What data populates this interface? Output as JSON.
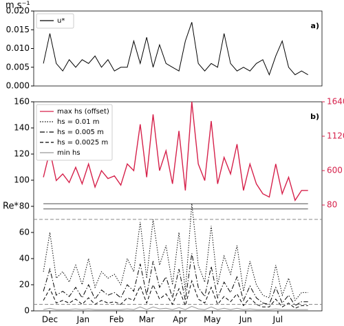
{
  "chart_data": [
    {
      "type": "line",
      "unit_label": "m s⁻¹",
      "panel_label": "a)",
      "x": [
        -6,
        0,
        6,
        12,
        18,
        24,
        30,
        36,
        42,
        48,
        54,
        60,
        66,
        72,
        78,
        84,
        90,
        96,
        102,
        108,
        114,
        120,
        126,
        132,
        138,
        144,
        150,
        156,
        162,
        168,
        174,
        180,
        186,
        192,
        198,
        204,
        210,
        216,
        222,
        228,
        234,
        240
      ],
      "xlim": [
        -15,
        253
      ],
      "series": [
        {
          "name": "u*",
          "color": "#000000",
          "linestyle": "solid",
          "values": [
            0.006,
            0.014,
            0.006,
            0.004,
            0.007,
            0.005,
            0.007,
            0.006,
            0.008,
            0.005,
            0.007,
            0.004,
            0.005,
            0.005,
            0.012,
            0.006,
            0.013,
            0.005,
            0.011,
            0.006,
            0.005,
            0.004,
            0.012,
            0.017,
            0.006,
            0.004,
            0.006,
            0.005,
            0.014,
            0.006,
            0.004,
            0.005,
            0.004,
            0.006,
            0.007,
            0.003,
            0.008,
            0.012,
            0.005,
            0.003,
            0.004,
            0.003
          ]
        }
      ],
      "ylim": [
        0,
        0.02
      ],
      "yticks": [
        {
          "value": 0,
          "label": "0.000"
        },
        {
          "value": 0.005,
          "label": "0.005"
        },
        {
          "value": 0.01,
          "label": "0.010"
        },
        {
          "value": 0.015,
          "label": "0.015"
        },
        {
          "value": 0.02,
          "label": "0.020"
        }
      ],
      "legend": "upper left"
    },
    {
      "type": "line",
      "y_label": "Re*",
      "panel_label": "b)",
      "x": [
        -6,
        0,
        6,
        12,
        18,
        24,
        30,
        36,
        42,
        48,
        54,
        60,
        66,
        72,
        78,
        84,
        90,
        96,
        102,
        108,
        114,
        120,
        126,
        132,
        138,
        144,
        150,
        156,
        162,
        168,
        174,
        180,
        186,
        192,
        198,
        204,
        210,
        216,
        222,
        228,
        234,
        240
      ],
      "xlim": [
        -15,
        253
      ],
      "xticks": [
        {
          "value": 0,
          "label": "Dec"
        },
        {
          "value": 31,
          "label": "Jan"
        },
        {
          "value": 62,
          "label": "Feb"
        },
        {
          "value": 90,
          "label": "Mar"
        },
        {
          "value": 121,
          "label": "Apr"
        },
        {
          "value": 151,
          "label": "May"
        },
        {
          "value": 182,
          "label": "Jun"
        },
        {
          "value": 212,
          "label": "Jul"
        }
      ],
      "ylim": [
        0,
        160
      ],
      "yticks": [
        0,
        20,
        40,
        60,
        80,
        100,
        120,
        140,
        160
      ],
      "y2lim": [
        -1520,
        1640
      ],
      "y2ticks": [
        80,
        600,
        1120,
        1640
      ],
      "y2color": "#d6204a",
      "hlines": [
        {
          "value": 82,
          "color": "#333333",
          "linestyle": "solid"
        },
        {
          "value": 78,
          "color": "#333333",
          "linestyle": "solid"
        },
        {
          "value": 70,
          "color": "#888888",
          "linestyle": "dashed"
        },
        {
          "value": 5,
          "color": "#888888",
          "linestyle": "dashed"
        }
      ],
      "legend": "upper left",
      "series": [
        {
          "name": "max hs (offset)",
          "color": "#d6204a",
          "linestyle": "solid",
          "axis": "y2",
          "values": [
            500,
            900,
            450,
            550,
            420,
            650,
            400,
            700,
            350,
            600,
            480,
            520,
            380,
            700,
            600,
            1300,
            500,
            1450,
            600,
            900,
            400,
            1200,
            300,
            1640,
            700,
            450,
            1350,
            400,
            800,
            550,
            1000,
            300,
            700,
            400,
            250,
            200,
            700,
            250,
            500,
            150,
            300,
            300
          ]
        },
        {
          "name": "hs = 0.01 m",
          "color": "#000000",
          "linestyle": "dotted",
          "values": [
            30,
            60,
            25,
            30,
            22,
            35,
            20,
            40,
            18,
            30,
            25,
            28,
            20,
            40,
            30,
            68,
            25,
            70,
            35,
            50,
            20,
            60,
            15,
            82,
            35,
            22,
            65,
            20,
            42,
            28,
            50,
            15,
            38,
            20,
            12,
            10,
            35,
            12,
            25,
            8,
            14,
            14
          ]
        },
        {
          "name": "hs = 0.005 m",
          "color": "#000000",
          "linestyle": "dashdot",
          "values": [
            15,
            32,
            12,
            15,
            11,
            18,
            10,
            20,
            9,
            16,
            12,
            14,
            10,
            20,
            15,
            36,
            12,
            38,
            18,
            26,
            10,
            32,
            8,
            44,
            18,
            11,
            34,
            10,
            22,
            14,
            26,
            8,
            19,
            10,
            6,
            5,
            18,
            6,
            12,
            4,
            7,
            7
          ]
        },
        {
          "name": "hs = 0.0025 m",
          "color": "#000000",
          "linestyle": "dashed",
          "values": [
            8,
            17,
            6,
            8,
            6,
            9,
            5,
            10,
            5,
            8,
            6,
            7,
            5,
            10,
            8,
            19,
            6,
            20,
            9,
            13,
            5,
            17,
            4,
            23,
            9,
            6,
            18,
            5,
            11,
            7,
            13,
            4,
            10,
            5,
            3,
            3,
            9,
            3,
            6,
            2,
            4,
            4
          ]
        },
        {
          "name": "min hs",
          "color": "#999999",
          "linestyle": "solid",
          "values": [
            1,
            2,
            1,
            1,
            1,
            1.5,
            1,
            1.5,
            1,
            1,
            1,
            1,
            1,
            1.5,
            1,
            3,
            1,
            3,
            1.5,
            2,
            1,
            2.5,
            1,
            3.5,
            1.5,
            1,
            3,
            1,
            2,
            1,
            2,
            1,
            1.5,
            1,
            1,
            1,
            1.5,
            1,
            1,
            1,
            1,
            1
          ]
        }
      ]
    }
  ]
}
